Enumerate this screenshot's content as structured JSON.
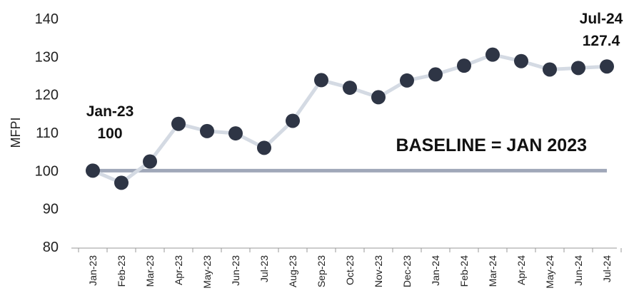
{
  "chart_data": {
    "type": "line",
    "title": "",
    "xlabel": "",
    "ylabel": "MFPI",
    "ylim": [
      80,
      140
    ],
    "yticks": [
      80,
      90,
      100,
      110,
      120,
      130,
      140
    ],
    "grid": false,
    "categories": [
      "Jan-23",
      "Feb-23",
      "Mar-23",
      "Apr-23",
      "May-23",
      "Jun-23",
      "Jul-23",
      "Aug-23",
      "Sep-23",
      "Oct-23",
      "Nov-23",
      "Dec-23",
      "Jan-24",
      "Feb-24",
      "Mar-24",
      "Apr-24",
      "May-24",
      "Jun-24",
      "Jul-24"
    ],
    "series": [
      {
        "values": [
          100,
          96.8,
          102.4,
          112.3,
          110.4,
          109.8,
          106,
          113.1,
          123.8,
          121.8,
          119.3,
          123.7,
          125.3,
          127.6,
          130.5,
          128.8,
          126.6,
          127,
          127.4
        ]
      }
    ],
    "baseline": {
      "value": 100,
      "label": "BASELINE = JAN 2023"
    },
    "annotations": [
      {
        "category": "Jan-23",
        "line1": "Jan-23",
        "line2": "100"
      },
      {
        "category": "Jul-24",
        "line1": "Jul-24",
        "line2": "127.4"
      }
    ],
    "colors": {
      "line": "#d4dae3",
      "marker": "#2e3545",
      "baseline": "#a0a8b9"
    }
  }
}
